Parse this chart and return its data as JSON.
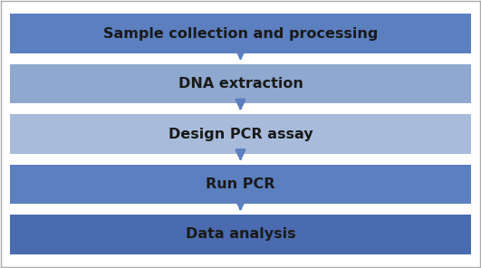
{
  "steps": [
    "Sample collection and processing",
    "DNA extraction",
    "Design PCR assay",
    "Run PCR",
    "Data analysis"
  ],
  "bar_colors": [
    "#5B7FBF",
    "#8FA8CF",
    "#A8BBDA",
    "#5B7FBF",
    "#4A6BAF"
  ],
  "text_color": "#1A1A1A",
  "background_color": "#FFFFFF",
  "border_color": "#AAAAAA",
  "arrow_color": "#5B7FBF",
  "font_size": 11.5,
  "font_weight": "bold"
}
